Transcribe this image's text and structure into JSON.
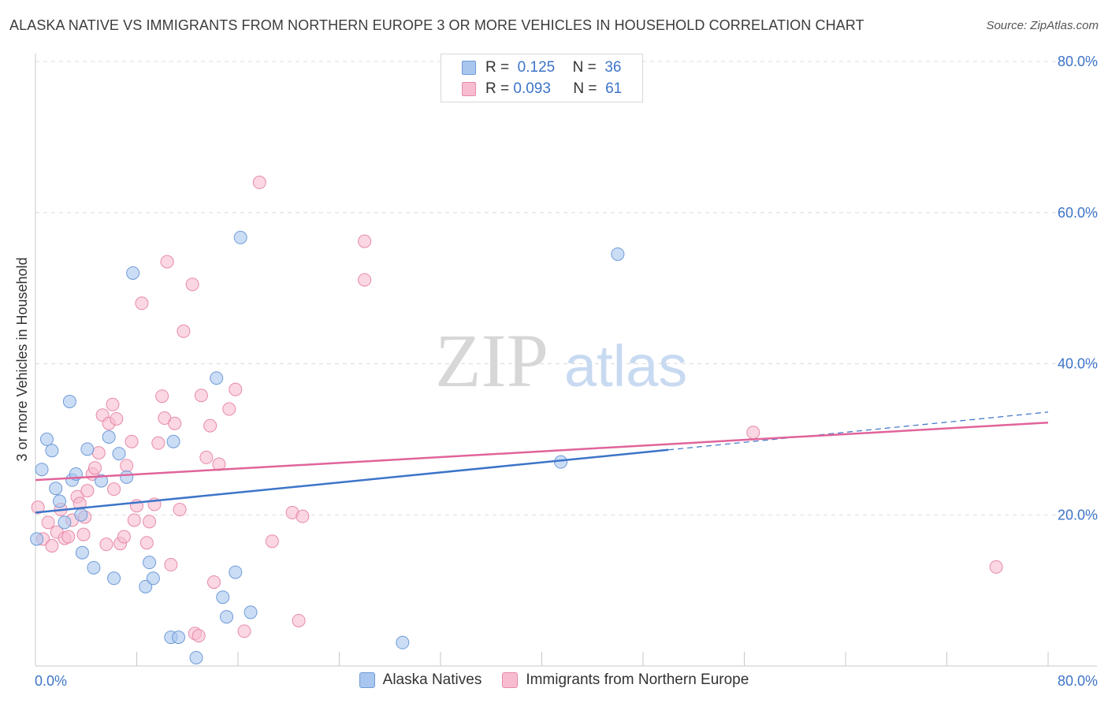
{
  "header": {
    "title": "ALASKA NATIVE VS IMMIGRANTS FROM NORTHERN EUROPE 3 OR MORE VEHICLES IN HOUSEHOLD CORRELATION CHART",
    "source": "Source: ZipAtlas.com"
  },
  "watermark": {
    "zip": "ZIP",
    "atlas": "atlas"
  },
  "legend": {
    "r_label": "R =",
    "n_label": "N =",
    "rows": [
      {
        "r": "0.125",
        "n": "36",
        "color": "#a9c6ef",
        "edge": "#6f9bd8"
      },
      {
        "r": "0.093",
        "n": "61",
        "color": "#f7bcd0",
        "edge": "#e88aa8"
      }
    ]
  },
  "bottom_legend": {
    "a": "Alaska Natives",
    "b": "Immigrants from Northern Europe"
  },
  "chart_data": {
    "type": "scatter",
    "title": "ALASKA NATIVE VS IMMIGRANTS FROM NORTHERN EUROPE 3 OR MORE VEHICLES IN HOUSEHOLD CORRELATION CHART",
    "xlabel": "",
    "ylabel": "3 or more Vehicles in Household",
    "xlim": [
      0,
      80
    ],
    "ylim": [
      0,
      80
    ],
    "x_tick_labels": [
      "0.0%",
      "80.0%"
    ],
    "y_ticks": [
      20,
      40,
      60,
      80
    ],
    "y_tick_labels": [
      "20.0%",
      "40.0%",
      "60.0%",
      "80.0%"
    ],
    "grid": true,
    "colors": {
      "blue": "#3d74c9",
      "pink": "#e0649a",
      "blue_fill": "#a9c6ef",
      "pink_fill": "#f7bcd0",
      "axis_label": "#3d74c9"
    },
    "series": [
      {
        "name": "Alaska Natives",
        "color": "blue",
        "R": 0.125,
        "N": 36,
        "trend": {
          "x0": 0,
          "y0": 20.3,
          "x1": 50,
          "y1": 28.6,
          "dash_to_x": 80,
          "dash_to_y": 33.6
        },
        "points": [
          [
            0.1,
            16.8
          ],
          [
            0.5,
            26
          ],
          [
            0.9,
            30
          ],
          [
            1.3,
            28.5
          ],
          [
            1.6,
            23.5
          ],
          [
            1.9,
            21.8
          ],
          [
            2.3,
            19
          ],
          [
            2.7,
            35
          ],
          [
            2.9,
            24.6
          ],
          [
            3.2,
            25.4
          ],
          [
            3.7,
            15
          ],
          [
            4.1,
            28.7
          ],
          [
            4.6,
            13
          ],
          [
            5.2,
            24.5
          ],
          [
            5.8,
            30.3
          ],
          [
            6.2,
            11.6
          ],
          [
            6.6,
            28.1
          ],
          [
            7.2,
            25
          ],
          [
            7.7,
            52
          ],
          [
            8.7,
            10.5
          ],
          [
            9.0,
            13.7
          ],
          [
            9.3,
            11.6
          ],
          [
            10.7,
            3.8
          ],
          [
            10.9,
            29.7
          ],
          [
            11.3,
            3.8
          ],
          [
            12.7,
            1.1
          ],
          [
            14.3,
            38.1
          ],
          [
            14.8,
            9.1
          ],
          [
            15.1,
            6.5
          ],
          [
            15.8,
            12.4
          ],
          [
            16.2,
            56.7
          ],
          [
            17.0,
            7.1
          ],
          [
            29.0,
            3.1
          ],
          [
            41.5,
            27
          ],
          [
            46.0,
            54.5
          ],
          [
            3.6,
            20
          ]
        ]
      },
      {
        "name": "Immigrants from Northern Europe",
        "color": "pink",
        "R": 0.093,
        "N": 61,
        "trend": {
          "x0": 0,
          "y0": 24.6,
          "x1": 80,
          "y1": 32.2
        },
        "points": [
          [
            0.2,
            21
          ],
          [
            0.6,
            16.8
          ],
          [
            1.0,
            19
          ],
          [
            1.3,
            15.9
          ],
          [
            1.7,
            17.7
          ],
          [
            2.0,
            20.7
          ],
          [
            2.3,
            16.9
          ],
          [
            2.6,
            17.1
          ],
          [
            2.9,
            19.3
          ],
          [
            3.3,
            22.4
          ],
          [
            3.5,
            21.5
          ],
          [
            3.8,
            17.4
          ],
          [
            4.1,
            23.2
          ],
          [
            4.5,
            25.4
          ],
          [
            4.7,
            26.2
          ],
          [
            5.0,
            28.2
          ],
          [
            5.3,
            33.2
          ],
          [
            5.6,
            16.1
          ],
          [
            5.8,
            32.1
          ],
          [
            6.1,
            34.6
          ],
          [
            6.4,
            32.7
          ],
          [
            6.7,
            16.2
          ],
          [
            7.0,
            17.1
          ],
          [
            7.2,
            26.5
          ],
          [
            7.6,
            29.7
          ],
          [
            7.8,
            19.3
          ],
          [
            8.0,
            21.2
          ],
          [
            8.4,
            48
          ],
          [
            8.8,
            16.3
          ],
          [
            9.0,
            19.1
          ],
          [
            9.4,
            21.4
          ],
          [
            9.7,
            29.5
          ],
          [
            10.0,
            35.7
          ],
          [
            10.2,
            32.8
          ],
          [
            10.4,
            53.5
          ],
          [
            10.7,
            13.4
          ],
          [
            11.0,
            32.1
          ],
          [
            11.4,
            20.7
          ],
          [
            11.7,
            44.3
          ],
          [
            12.4,
            50.5
          ],
          [
            12.6,
            4.3
          ],
          [
            12.9,
            4.0
          ],
          [
            13.1,
            35.8
          ],
          [
            13.5,
            27.6
          ],
          [
            13.8,
            31.8
          ],
          [
            14.1,
            11.1
          ],
          [
            14.5,
            26.7
          ],
          [
            15.3,
            34
          ],
          [
            15.8,
            36.6
          ],
          [
            16.5,
            4.6
          ],
          [
            17.7,
            64
          ],
          [
            18.7,
            16.5
          ],
          [
            20.3,
            20.3
          ],
          [
            20.8,
            6.0
          ],
          [
            21.1,
            19.8
          ],
          [
            26.0,
            56.2
          ],
          [
            26.0,
            51.1
          ],
          [
            56.7,
            30.9
          ],
          [
            75.9,
            13.1
          ],
          [
            3.9,
            19.7
          ],
          [
            6.2,
            23.4
          ]
        ]
      }
    ]
  }
}
